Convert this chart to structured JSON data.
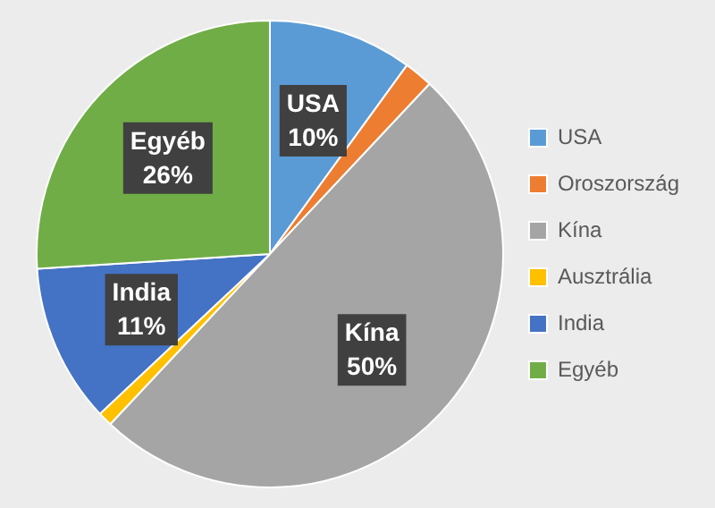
{
  "chart_data": {
    "type": "pie",
    "categories": [
      "USA",
      "Oroszország",
      "Kína",
      "Ausztrália",
      "India",
      "Egyéb"
    ],
    "values": [
      10,
      2,
      50,
      1,
      11,
      26
    ],
    "colors": [
      "#5b9bd5",
      "#ed7d31",
      "#a5a5a5",
      "#ffc000",
      "#4472c4",
      "#70ad47"
    ],
    "value_labels": [
      "10%",
      null,
      "50%",
      null,
      "11%",
      "26%"
    ],
    "legend": "right"
  }
}
